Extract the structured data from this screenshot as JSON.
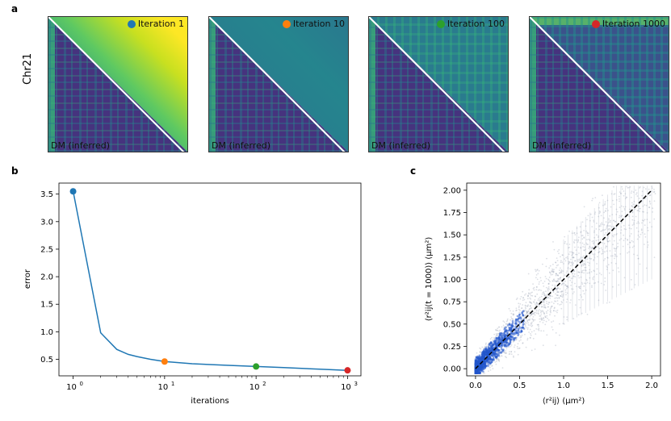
{
  "panels": {
    "a": "a",
    "b": "b",
    "c": "c"
  },
  "heatmaps": {
    "row_label": "Chr21",
    "lower_label": "DM (inferred)",
    "items": [
      {
        "label": "Iteration 1",
        "color": "#1f77b4"
      },
      {
        "label": "Iteration 10",
        "color": "#ff7f0e"
      },
      {
        "label": "Iteration 100",
        "color": "#2ca02c"
      },
      {
        "label": "Iteration 1000",
        "color": "#d62728"
      }
    ]
  },
  "chart_data": [
    {
      "type": "line",
      "xscale": "log",
      "xlabel": "iterations",
      "ylabel": "error",
      "xlim": [
        0.7,
        1400
      ],
      "ylim": [
        0.2,
        3.7
      ],
      "xticks": [
        {
          "value": 1,
          "label": "10",
          "exp": "0"
        },
        {
          "value": 10,
          "label": "10",
          "exp": "1"
        },
        {
          "value": 100,
          "label": "10",
          "exp": "2"
        },
        {
          "value": 1000,
          "label": "10",
          "exp": "3"
        }
      ],
      "yticks": [
        0.5,
        1.0,
        1.5,
        2.0,
        2.5,
        3.0,
        3.5
      ],
      "ytick_labels": [
        "0.5",
        "1.0",
        "1.5",
        "2.0",
        "2.5",
        "3.0",
        "3.5"
      ],
      "series": [
        {
          "name": "error",
          "color": "#1f77b4",
          "x": [
            1,
            2,
            3,
            4,
            5,
            7,
            10,
            20,
            50,
            100,
            200,
            500,
            1000
          ],
          "y": [
            3.55,
            0.98,
            0.68,
            0.59,
            0.55,
            0.5,
            0.46,
            0.42,
            0.39,
            0.37,
            0.35,
            0.32,
            0.3
          ]
        }
      ],
      "markers": [
        {
          "x": 1,
          "y": 3.55,
          "color": "#1f77b4"
        },
        {
          "x": 10,
          "y": 0.46,
          "color": "#ff7f0e"
        },
        {
          "x": 100,
          "y": 0.37,
          "color": "#2ca02c"
        },
        {
          "x": 1000,
          "y": 0.3,
          "color": "#d62728"
        }
      ]
    },
    {
      "type": "scatter",
      "xlabel": "⟨r²ij⟩ (μm²)",
      "ylabel": "⟨r²ij(t = 1000)⟩ (μm²)",
      "xlim": [
        -0.1,
        2.1
      ],
      "ylim": [
        -0.08,
        2.08
      ],
      "xticks": [
        0.0,
        0.5,
        1.0,
        1.5,
        2.0
      ],
      "xtick_labels": [
        "0.0",
        "0.5",
        "1.0",
        "1.5",
        "2.0"
      ],
      "yticks": [
        0.0,
        0.25,
        0.5,
        0.75,
        1.0,
        1.25,
        1.5,
        1.75,
        2.0
      ],
      "ytick_labels": [
        "0.00",
        "0.25",
        "0.50",
        "0.75",
        "1.00",
        "1.25",
        "1.50",
        "1.75",
        "2.00"
      ],
      "reference_line": {
        "x": [
          0,
          2.0
        ],
        "y": [
          0,
          2.0
        ],
        "style": "dashed",
        "color": "#000000"
      },
      "point_color": "#9aa2b4",
      "dense_color": "#2255cc"
    }
  ]
}
